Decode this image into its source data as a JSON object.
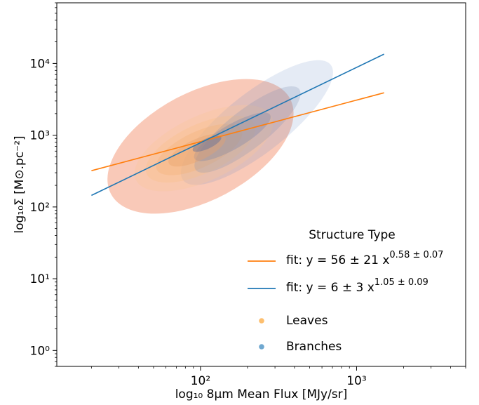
{
  "chart_data": {
    "type": "scatter",
    "xlabel": "log₁₀ 8μm Mean Flux [MJy/sr]",
    "ylabel": "log₁₀Σ  [M⊙.pc⁻²]",
    "x_scale": "log",
    "y_scale": "log",
    "xlim": [
      12,
      5000
    ],
    "ylim": [
      0.6,
      70000
    ],
    "x_ticks": [
      {
        "value": 100,
        "label": "10²"
      },
      {
        "value": 1000,
        "label": "10³"
      }
    ],
    "y_ticks": [
      {
        "value": 1,
        "label": "10⁰"
      },
      {
        "value": 10,
        "label": "10¹"
      },
      {
        "value": 100,
        "label": "10²"
      },
      {
        "value": 1000,
        "label": "10³"
      },
      {
        "value": 10000,
        "label": "10⁴"
      }
    ],
    "grid": false,
    "legend": {
      "title": "Structure Type",
      "placement": "lower-right",
      "entries": [
        {
          "label": "fit: y = 56 ± 21 x^(0.58 ± 0.07)",
          "marker": "line",
          "color": "#ff7f0e"
        },
        {
          "label": "fit: y = 6 ± 3 x^(1.05 ± 0.09)",
          "marker": "line",
          "color": "#1f77b4"
        },
        {
          "label": "Leaves",
          "marker": "dot",
          "color": "#fdbf6f"
        },
        {
          "label": "Branches",
          "marker": "dot",
          "color": "#6fa8d0"
        }
      ]
    },
    "fit_lines": [
      {
        "name": "Leaves fit",
        "color": "#ff7f0e",
        "x": [
          20,
          1500
        ],
        "y": [
          320,
          3900
        ]
      },
      {
        "name": "Branches fit",
        "color": "#1f77b4",
        "x": [
          20,
          1500
        ],
        "y": [
          145,
          13500
        ]
      }
    ],
    "density_contours": [
      {
        "group": "Leaves",
        "color": "#f7b7a0",
        "opacity": 0.75,
        "center": [
          100,
          700
        ],
        "log_radii": [
          0.65,
          0.75
        ],
        "angle_deg": 28
      },
      {
        "group": "Branches",
        "color": "#6e8fc6",
        "opacity": 0.18,
        "center": [
          230,
          1500
        ],
        "log_radii": [
          0.6,
          0.42
        ],
        "angle_deg": 38
      },
      {
        "group": "Leaves",
        "color": "#f9c79a",
        "opacity": 0.35,
        "center": [
          105,
          660
        ],
        "log_radii": [
          0.48,
          0.45
        ],
        "angle_deg": 25
      },
      {
        "group": "Leaves",
        "color": "#f8c08a",
        "opacity": 0.35,
        "center": [
          100,
          640
        ],
        "log_radii": [
          0.38,
          0.34
        ],
        "angle_deg": 25
      },
      {
        "group": "Leaves",
        "color": "#f3b276",
        "opacity": 0.35,
        "center": [
          98,
          630
        ],
        "log_radii": [
          0.3,
          0.25
        ],
        "angle_deg": 25
      },
      {
        "group": "Branches",
        "color": "#7f8fb4",
        "opacity": 0.25,
        "center": [
          200,
          1200
        ],
        "log_radii": [
          0.42,
          0.27
        ],
        "angle_deg": 38
      },
      {
        "group": "Branches",
        "color": "#6d7fa8",
        "opacity": 0.3,
        "center": [
          160,
          950
        ],
        "log_radii": [
          0.28,
          0.17
        ],
        "angle_deg": 30
      },
      {
        "group": "Leaves",
        "color": "#e8a36b",
        "opacity": 0.4,
        "center": [
          95,
          620
        ],
        "log_radii": [
          0.2,
          0.15
        ],
        "angle_deg": 25
      },
      {
        "group": "Branches",
        "color": "#5f6f98",
        "opacity": 0.45,
        "center": [
          110,
          760
        ],
        "log_radii": [
          0.1,
          0.07
        ],
        "angle_deg": 25
      }
    ]
  }
}
